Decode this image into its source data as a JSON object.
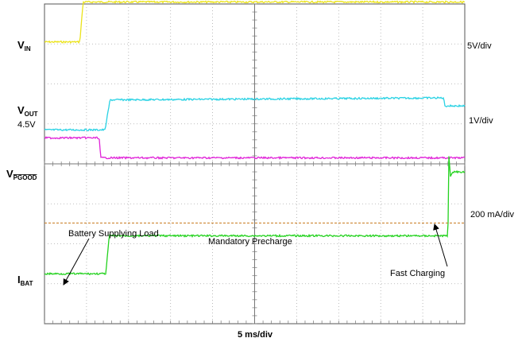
{
  "chart_data": {
    "type": "line",
    "title": "",
    "xlabel": "5 ms/div",
    "x_unit": "ms",
    "x_range": [
      0,
      50
    ],
    "grid": true,
    "colors": {
      "vin": "#ebe31a",
      "vout": "#29d2e4",
      "vpgood": "#e022d8",
      "ibat": "#23d21e",
      "precharge": "#c8781a"
    },
    "series": [
      {
        "key": "vin",
        "name": "V_IN",
        "scale": "5V/div",
        "x": [
          0,
          4.2,
          4.6,
          50
        ],
        "y_div": [
          7.05,
          7.05,
          8.05,
          8.05
        ]
      },
      {
        "key": "vout",
        "name": "V_OUT",
        "sub_label": "4.5V",
        "scale": "1V/div",
        "x": [
          0,
          7.2,
          7.8,
          47.5,
          47.6,
          50
        ],
        "y_div": [
          4.85,
          4.85,
          5.6,
          5.65,
          5.45,
          5.45
        ]
      },
      {
        "key": "vpgood",
        "name": "V_PGOOD",
        "x": [
          0,
          6.5,
          6.7,
          50
        ],
        "y_div": [
          4.65,
          4.65,
          4.15,
          4.15
        ]
      },
      {
        "key": "ibat",
        "name": "I_BAT",
        "scale": "200 mA/div",
        "x": [
          0,
          7.3,
          7.7,
          48.0,
          48.1,
          48.3,
          48.6,
          50
        ],
        "y_div": [
          1.25,
          1.25,
          2.2,
          2.2,
          4.2,
          3.7,
          3.8,
          3.8
        ]
      }
    ],
    "reference_lines": [
      {
        "key": "precharge",
        "label": "Mandatory Precharge",
        "y_div": 2.52
      }
    ],
    "annotations": [
      {
        "key": "battery",
        "text": "Battery Supplying Load"
      },
      {
        "key": "fast",
        "text": "Fast Charging"
      }
    ]
  }
}
